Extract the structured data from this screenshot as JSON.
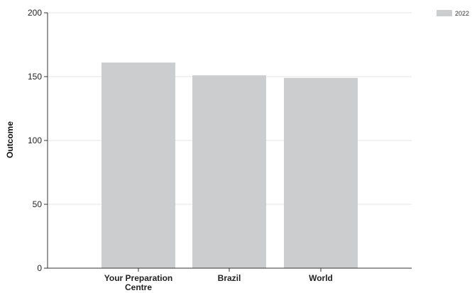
{
  "chart_data": {
    "type": "bar",
    "categories": [
      "Your Preparation Centre",
      "Brazil",
      "World"
    ],
    "series": [
      {
        "name": "2022",
        "values": [
          161,
          151,
          149
        ]
      }
    ],
    "title": "",
    "xlabel": "",
    "ylabel": "Outcome",
    "ylim": [
      0,
      200
    ],
    "yticks": [
      0,
      50,
      100,
      150,
      200
    ],
    "grid": true,
    "legend_position": "top-right",
    "bar_color": "#cccdcf"
  }
}
